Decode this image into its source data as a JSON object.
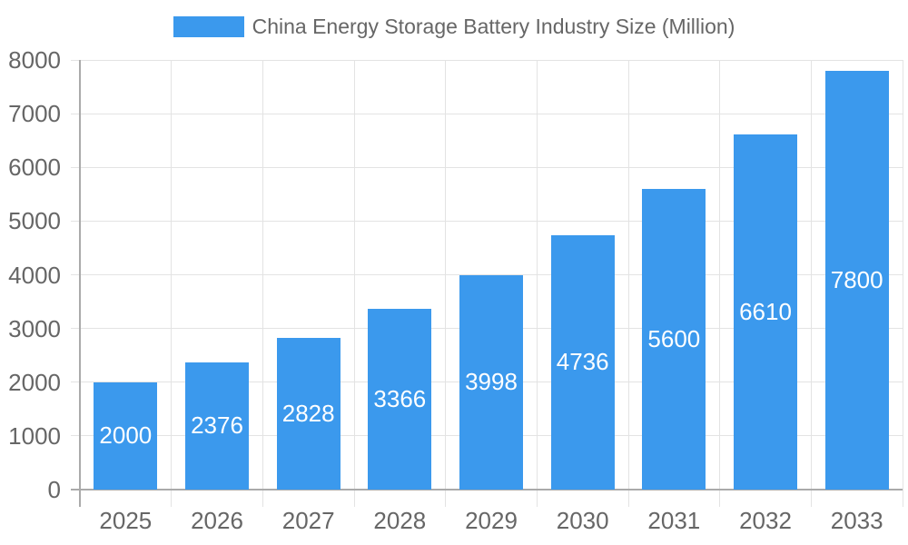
{
  "chart_data": {
    "type": "bar",
    "title": "China Energy Storage Battery Industry Size (Million)",
    "legend_entries": [
      "China Energy Storage Battery Industry Size (Million)"
    ],
    "legend_position": "top",
    "categories": [
      "2025",
      "2026",
      "2027",
      "2028",
      "2029",
      "2030",
      "2031",
      "2032",
      "2033"
    ],
    "values": [
      2000,
      2376,
      2828,
      3366,
      3998,
      4736,
      5600,
      6610,
      7800
    ],
    "bar_value_labels": [
      "2000",
      "2376",
      "2828",
      "3366",
      "3998",
      "4736",
      "5600",
      "6610",
      "7800"
    ],
    "xlabel": "",
    "ylabel": "",
    "ylim": [
      0,
      8000
    ],
    "ytick_step": 1000,
    "yticks": [
      "0",
      "1000",
      "2000",
      "3000",
      "4000",
      "5000",
      "6000",
      "7000",
      "8000"
    ],
    "grid": true,
    "colors": {
      "bar": "#3b99ed",
      "bar_label": "#ffffff",
      "axis_text": "#666666",
      "gridline": "#e3e3e3",
      "axis_line": "#aaaaaa",
      "background": "#ffffff"
    }
  }
}
